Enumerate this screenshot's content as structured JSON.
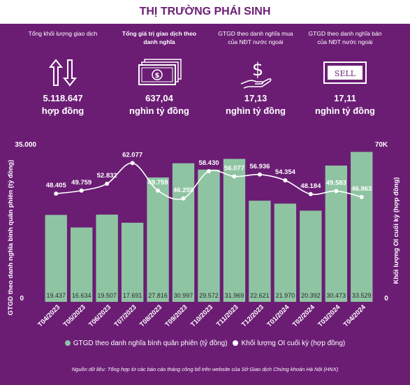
{
  "title": "THỊ TRƯỜNG PHÁI SINH",
  "stats": [
    {
      "label": "Tổng khối lượng giao dịch",
      "value": "5.118.647",
      "unit": "hợp đồng",
      "icon": "up-down-arrows-icon"
    },
    {
      "label": "Tổng giá trị giao dịch theo danh nghĩa",
      "value": "637,04",
      "unit": "nghìn tỷ đồng",
      "icon": "money-bills-icon"
    },
    {
      "label": "GTGD theo danh nghĩa mua của NĐT nước ngoài",
      "value": "17,13",
      "unit": "nghìn tỷ đồng",
      "icon": "dollar-hand-icon"
    },
    {
      "label": "GTGD theo danh nghĩa bán của NĐT nước ngoài",
      "value": "17,11",
      "unit": "nghìn tỷ đồng",
      "icon": "sell-sign-icon"
    }
  ],
  "chart_data": {
    "type": "bar",
    "categories": [
      "T04/2023",
      "T05/2023",
      "T06/2023",
      "T07/2023",
      "T08/2023",
      "T09/2023",
      "T10/2023",
      "T11/2023",
      "T12/2023",
      "T01/2024",
      "T02/2024",
      "T03/2024",
      "T04/2024"
    ],
    "series": [
      {
        "name": "GTGD theo danh nghĩa bình quân phiên (tỷ đồng)",
        "type": "bar",
        "axis": "left",
        "color": "#8fc4a3",
        "values": [
          19437,
          16634,
          19507,
          17691,
          27816,
          30997,
          29572,
          31969,
          22621,
          21970,
          20392,
          30473,
          33529
        ],
        "labels": [
          "19.437",
          "16.634",
          "19.507",
          "17.691",
          "27.816",
          "30.997",
          "29.572",
          "31.969",
          "22.621",
          "21.970",
          "20.392",
          "30.473",
          "33.529"
        ]
      },
      {
        "name": "Khối lượng OI cuối kỳ (hợp đồng)",
        "type": "line",
        "axis": "right",
        "color": "#ffffff",
        "values": [
          48405,
          49759,
          52832,
          62077,
          49759,
          46259,
          58430,
          56077,
          56936,
          54354,
          48184,
          49583,
          46863
        ],
        "labels": [
          "48.405",
          "49.759",
          "52.832",
          "62.077",
          "49.759",
          "46.259",
          "58.430",
          "56.077",
          "56.936",
          "54.354",
          "48.184",
          "49.583",
          "46.863"
        ]
      }
    ],
    "ylabel_left": "GTGD theo danh nghĩa bình quân phiên (tỷ đồng)",
    "ylabel_right": "Khối lượng OI cuối kỳ (hợp đồng)",
    "ylim_left": [
      0,
      35000
    ],
    "ylim_right": [
      0,
      70000
    ],
    "left_ticks": [
      "35.000",
      "0"
    ],
    "right_ticks": [
      "70K",
      "0"
    ],
    "legend_position": "bottom",
    "grid": false
  },
  "source": "Nguồn dữ liệu: Tổng hợp từ các báo cáo tháng công bố trên website của Sở Giao dịch Chứng khoán Hà Nội (HNX)"
}
